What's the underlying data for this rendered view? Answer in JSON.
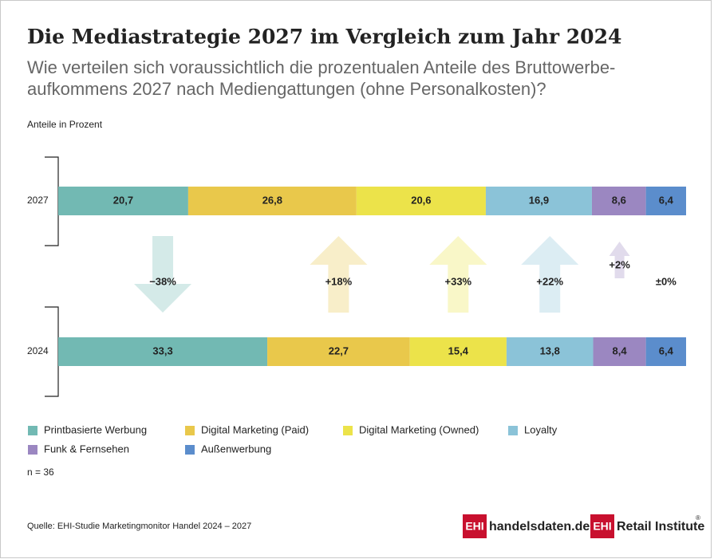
{
  "chart_data": {
    "type": "stacked-bar-horizontal",
    "title": "Die Mediastrategie 2027 im Vergleich zum Jahr 2024",
    "subtitle": [
      "Wie verteilen sich voraussichtlich die prozentualen Anteile des Bruttowerbe-",
      "aufkommens 2027 nach Mediengattungen (ohne Personalkosten)?"
    ],
    "unit_label": "Anteile in Prozent",
    "categories": [
      "2027",
      "2024"
    ],
    "series": [
      {
        "name": "Printbasierte Werbung",
        "color": "#72b9b3",
        "values": [
          20.7,
          33.3
        ],
        "value_labels": [
          "20,7",
          "33,3"
        ]
      },
      {
        "name": "Digital Marketing (Paid)",
        "color": "#e9c84b",
        "values": [
          26.8,
          22.7
        ],
        "value_labels": [
          "26,8",
          "22,7"
        ]
      },
      {
        "name": "Digital Marketing (Owned)",
        "color": "#ece34a",
        "values": [
          20.6,
          15.4
        ],
        "value_labels": [
          "20,6",
          "15,4"
        ]
      },
      {
        "name": "Loyalty",
        "color": "#8bc3d8",
        "values": [
          16.9,
          13.8
        ],
        "value_labels": [
          "16,9",
          "13,8"
        ]
      },
      {
        "name": "Funk & Fernsehen",
        "color": "#9b87c1",
        "values": [
          8.6,
          8.4
        ],
        "value_labels": [
          "8,6",
          "8,4"
        ]
      },
      {
        "name": "Außenwerbung",
        "color": "#5b8dcc",
        "values": [
          6.4,
          6.4
        ],
        "value_labels": [
          "6,4",
          "6,4"
        ]
      }
    ],
    "changes": {
      "values": [
        -38,
        18,
        33,
        22,
        2,
        0
      ],
      "value_labels": [
        "−38%",
        "+18%",
        "+33%",
        "+22%",
        "+2%",
        "±0%"
      ]
    },
    "note": "n = 36",
    "source": "Quelle: EHI-Studie Marketingmonitor Handel 2024 – 2027",
    "logos": [
      {
        "mark": "EHI",
        "text": "handelsdaten.de"
      },
      {
        "mark": "EHI",
        "text": "Retail Institute"
      }
    ]
  }
}
